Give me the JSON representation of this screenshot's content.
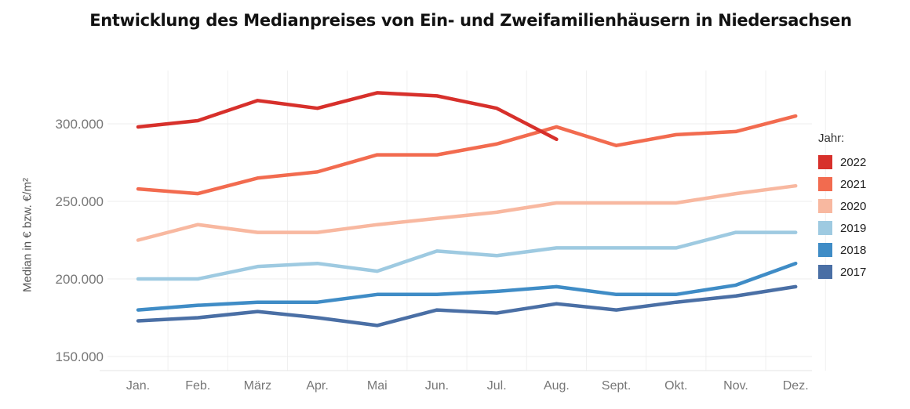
{
  "chart_data": {
    "type": "line",
    "title": "Entwicklung des Medianpreises von Ein- und Zweifamilienhäusern in Niedersachsen",
    "xlabel": "",
    "ylabel": "Median in € bzw. €/m²",
    "categories": [
      "Jan.",
      "Feb.",
      "März",
      "Apr.",
      "Mai",
      "Jun.",
      "Jul.",
      "Aug.",
      "Sept.",
      "Okt.",
      "Nov.",
      "Dez."
    ],
    "ylim": [
      145000,
      327000
    ],
    "yticks": [
      150000,
      200000,
      250000,
      300000
    ],
    "ytick_labels": [
      "150.000",
      "200.000",
      "250.000",
      "300.000"
    ],
    "grid": true,
    "legend": {
      "title": "Jahr:",
      "position": "right"
    },
    "series": [
      {
        "name": "2022",
        "color": "#d7302b",
        "values": [
          298000,
          302000,
          315000,
          310000,
          320000,
          318000,
          310000,
          290000,
          null,
          null,
          null,
          null
        ]
      },
      {
        "name": "2021",
        "color": "#f26b4f",
        "values": [
          258000,
          255000,
          265000,
          269000,
          280000,
          280000,
          287000,
          298000,
          286000,
          293000,
          295000,
          305000
        ]
      },
      {
        "name": "2020",
        "color": "#f8b8a0",
        "values": [
          225000,
          235000,
          230000,
          230000,
          235000,
          239000,
          243000,
          249000,
          249000,
          249000,
          255000,
          260000
        ]
      },
      {
        "name": "2019",
        "color": "#9ecae1",
        "values": [
          200000,
          200000,
          208000,
          210000,
          205000,
          218000,
          215000,
          220000,
          220000,
          220000,
          230000,
          230000
        ]
      },
      {
        "name": "2018",
        "color": "#3f8cc6",
        "values": [
          180000,
          183000,
          185000,
          185000,
          190000,
          190000,
          192000,
          195000,
          190000,
          190000,
          196000,
          210000
        ]
      },
      {
        "name": "2017",
        "color": "#4a6fa5",
        "values": [
          173000,
          175000,
          179000,
          175000,
          170000,
          180000,
          178000,
          184000,
          180000,
          185000,
          189000,
          195000
        ]
      }
    ]
  }
}
